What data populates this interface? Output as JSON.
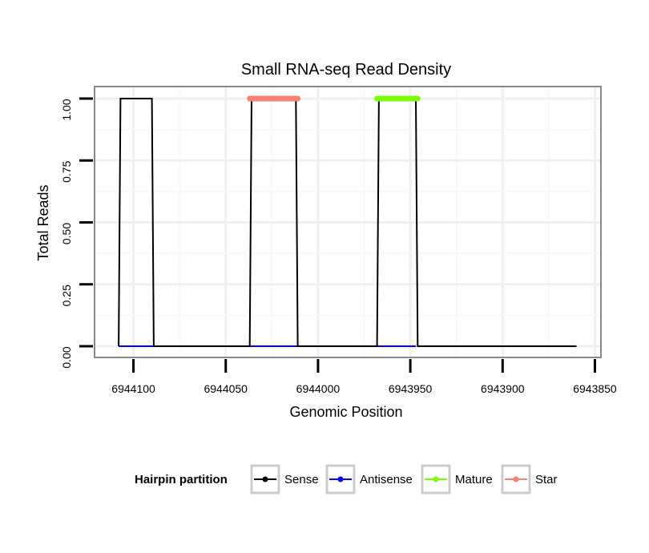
{
  "chart_data": {
    "type": "line",
    "title": "Small RNA-seq Read Density",
    "xlabel": "Genomic Position",
    "ylabel": "Total Reads",
    "x_reversed": true,
    "xlim": [
      6944115,
      6943845
    ],
    "ylim": [
      -0.03,
      1.03
    ],
    "x_ticks": [
      6944100,
      6944050,
      6944000,
      6943950,
      6943900,
      6943850
    ],
    "x_tick_labels": [
      "6944100",
      "6944050",
      "6944000",
      "6943950",
      "6943900",
      "6943850"
    ],
    "y_ticks": [
      0,
      0.25,
      0.5,
      0.75,
      1
    ],
    "y_tick_labels": [
      "0.00",
      "0.25",
      "0.50",
      "0.75",
      "1.00"
    ],
    "grid": true,
    "legend_title": "Hairpin partition",
    "legend_position": "bottom",
    "series": [
      {
        "name": "Sense",
        "color": "#000000",
        "x": [
          6944108,
          6944107,
          6944090,
          6944089,
          6944037,
          6944036,
          6944012,
          6944011,
          6943968,
          6943967,
          6943947,
          6943946,
          6943860
        ],
        "values": [
          0,
          1,
          1,
          0,
          0,
          1,
          1,
          0,
          0,
          1,
          1,
          0,
          0
        ]
      },
      {
        "name": "Antisense",
        "color": "#0000ff",
        "x": [
          6944108,
          6943947
        ],
        "values": [
          0,
          0
        ]
      },
      {
        "name": "Mature",
        "color": "#7cfc00",
        "x": [
          6943968,
          6943946
        ],
        "values": [
          1,
          1
        ]
      },
      {
        "name": "Star",
        "color": "#fa8072",
        "x": [
          6944037,
          6944011
        ],
        "values": [
          1,
          1
        ]
      }
    ]
  }
}
